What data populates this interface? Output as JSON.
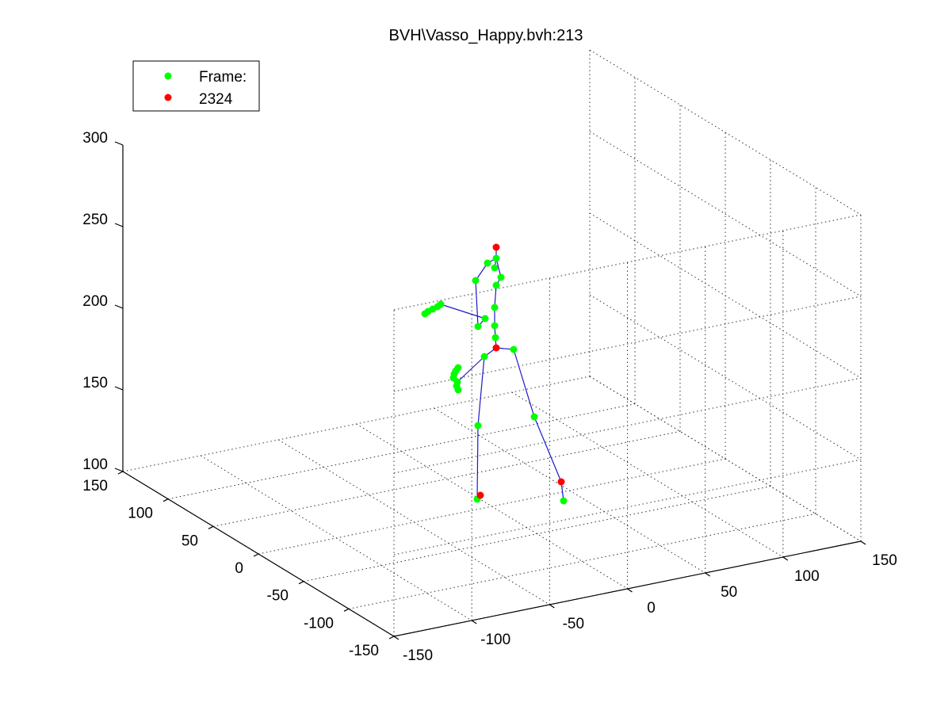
{
  "chart_data": {
    "type": "scatter",
    "projection": "3d",
    "title": "BVH\\Vasso_Happy.bvh:213",
    "legend": {
      "placement": "top-left",
      "entries": [
        {
          "label": "Frame:",
          "color": "#00ff00"
        },
        {
          "label": "2324",
          "color": "#ff0000"
        }
      ]
    },
    "grid": true,
    "x_axis": {
      "range": [
        -150,
        150
      ],
      "ticks": [
        "-150",
        "-100",
        "-50",
        "0",
        "50",
        "100",
        "150"
      ]
    },
    "y_axis": {
      "range": [
        -150,
        150
      ],
      "ticks": [
        "-150",
        "-100",
        "-50",
        "0",
        "50",
        "100",
        "150"
      ]
    },
    "z_axis": {
      "range": [
        100,
        300
      ],
      "ticks": [
        "100",
        "150",
        "200",
        "250",
        "300"
      ]
    },
    "colors": {
      "joint": "#00ff00",
      "end_site": "#ff0000",
      "bone": "#1a1acc"
    },
    "series": [
      {
        "name": "Frame:",
        "color": "#00ff00",
        "points": [
          [
            -2,
            1,
            206
          ],
          [
            8,
            -6,
            175
          ],
          [
            11,
            -6,
            155
          ],
          [
            16,
            -10,
            158
          ],
          [
            22,
            -8,
            180
          ],
          [
            12,
            -12,
            196
          ],
          [
            8,
            -16,
            203
          ],
          [
            10,
            -20,
            211
          ],
          [
            -4,
            6,
            196
          ],
          [
            -6,
            8,
            201
          ],
          [
            -8,
            10,
            197
          ],
          [
            -10,
            14,
            201
          ],
          [
            -20,
            20,
            208
          ],
          [
            -30,
            28,
            208
          ],
          [
            -36,
            36,
            207
          ],
          [
            -40,
            40,
            206
          ],
          [
            -44,
            42,
            205
          ],
          [
            -46,
            44,
            204
          ],
          [
            -6,
            14,
            178
          ],
          [
            -10,
            20,
            179
          ],
          [
            -14,
            24,
            179
          ],
          [
            -16,
            28,
            180
          ],
          [
            -18,
            26,
            174
          ],
          [
            -18,
            28,
            172
          ],
          [
            -18,
            30,
            170
          ],
          [
            -16,
            32,
            169
          ],
          [
            -12,
            26,
            179
          ],
          [
            0,
            10,
            204
          ],
          [
            6,
            2,
            213
          ],
          [
            8,
            0,
            213
          ],
          [
            6,
            -18,
            217
          ],
          [
            6,
            2,
            197
          ],
          [
            4,
            0,
            195
          ],
          [
            6,
            -4,
            222
          ],
          [
            2,
            4,
            222
          ],
          [
            6,
            -2,
            191
          ],
          [
            24,
            -40,
            164
          ],
          [
            -24,
            0,
            138
          ],
          [
            -32,
            -5,
            104
          ],
          [
            -14,
            -52,
            98
          ],
          [
            -20,
            -54,
            107
          ],
          [
            8,
            4,
            188
          ]
        ]
      },
      {
        "name": "2324",
        "color": "#ff0000",
        "points": [
          [
            6,
            -4,
            237
          ],
          [
            6,
            -4,
            180
          ],
          [
            -32,
            -5,
            107
          ],
          [
            -20,
            -54,
            109
          ]
        ]
      }
    ]
  }
}
